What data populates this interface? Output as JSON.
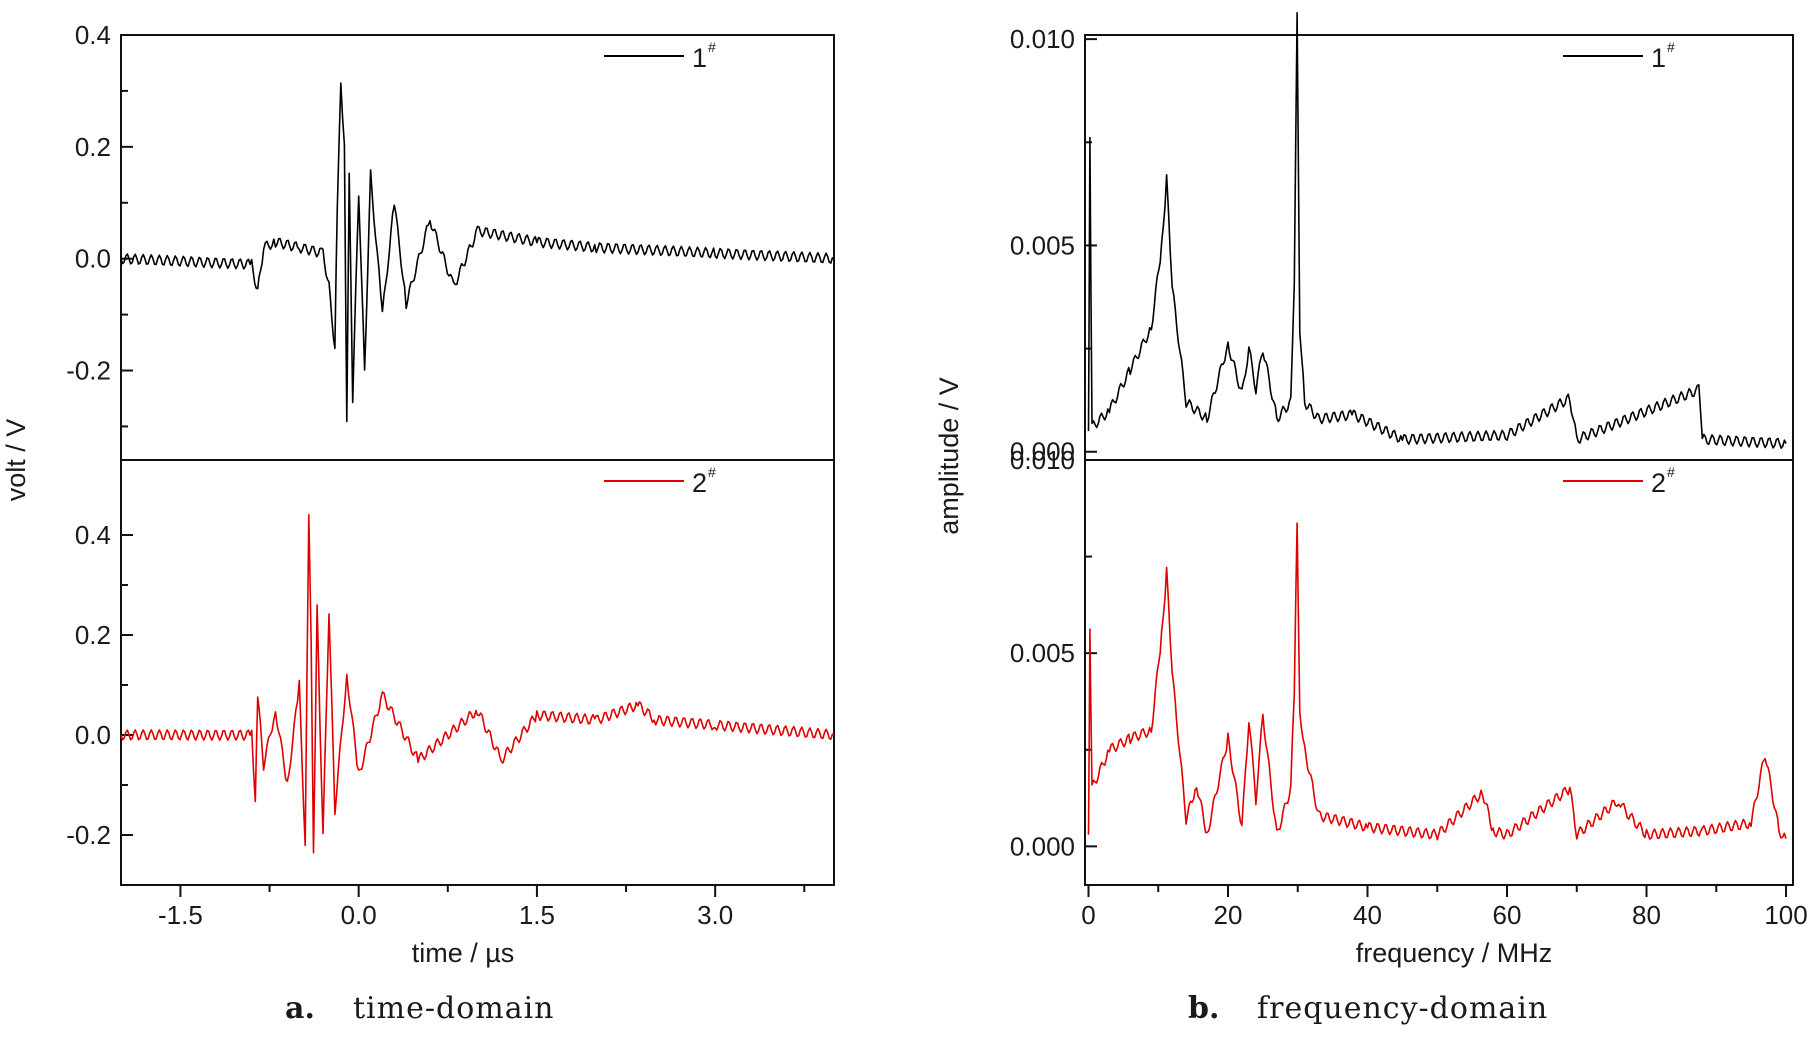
{
  "panels": [
    {
      "caption_letter": "a.",
      "caption_text": "time-domain",
      "xlabel": "time / µs",
      "ylabel": "volt / V"
    },
    {
      "caption_letter": "b.",
      "caption_text": "frequency-domain",
      "xlabel": "frequency / MHz",
      "ylabel": "amplitude / V"
    }
  ],
  "chart_data": [
    {
      "type": "line",
      "panel": "a",
      "xlabel": "time / µs",
      "ylabel": "volt / V",
      "xlim": [
        -2.0,
        4.0
      ],
      "x_ticks": [
        "-1.5",
        "0.0",
        "1.5",
        "3.0"
      ],
      "x_tick_values": [
        -1.5,
        0.0,
        1.5,
        3.0
      ],
      "subplots": [
        {
          "series": [
            {
              "name": "1#",
              "label_main": "1",
              "label_sup": "#",
              "color": "#000000",
              "x": [
                -2.0,
                -0.9,
                -0.85,
                -0.8,
                -0.7,
                -0.5,
                -0.3,
                -0.25,
                -0.2,
                -0.18,
                -0.15,
                -0.12,
                -0.1,
                -0.08,
                -0.05,
                0.0,
                0.05,
                0.1,
                0.2,
                0.3,
                0.4,
                0.6,
                0.8,
                1.0,
                1.5,
                2.0,
                3.0,
                4.0
              ],
              "y": [
                0.0,
                -0.01,
                -0.06,
                0.02,
                0.03,
                0.02,
                0.01,
                -0.05,
                -0.16,
                0.1,
                0.32,
                0.2,
                -0.3,
                0.15,
                -0.25,
                0.12,
                -0.2,
                0.15,
                -0.1,
                0.1,
                -0.08,
                0.07,
                -0.05,
                0.05,
                0.03,
                0.02,
                0.01,
                0.0
              ]
            }
          ],
          "ylim": [
            -0.36,
            0.4
          ],
          "y_ticks": [
            "-0.2",
            "0.0",
            "0.2",
            "0.4"
          ],
          "y_tick_values": [
            -0.2,
            0.0,
            0.2,
            0.4
          ]
        },
        {
          "series": [
            {
              "name": "2#",
              "label_main": "2",
              "label_sup": "#",
              "color": "#e00000",
              "x": [
                -2.0,
                -0.9,
                -0.87,
                -0.85,
                -0.8,
                -0.7,
                -0.6,
                -0.5,
                -0.45,
                -0.42,
                -0.4,
                -0.38,
                -0.35,
                -0.3,
                -0.25,
                -0.2,
                -0.1,
                0.0,
                0.2,
                0.5,
                1.0,
                1.2,
                1.5,
                2.0,
                2.35,
                2.5,
                3.0,
                4.0
              ],
              "y": [
                0.0,
                0.0,
                -0.14,
                0.08,
                -0.06,
                0.05,
                -0.1,
                0.1,
                -0.22,
                0.45,
                0.2,
                -0.24,
                0.25,
                -0.2,
                0.25,
                -0.15,
                0.12,
                -0.08,
                0.08,
                -0.05,
                0.05,
                -0.05,
                0.04,
                0.03,
                0.06,
                0.03,
                0.02,
                0.0
              ]
            }
          ],
          "ylim": [
            -0.3,
            0.55
          ],
          "y_ticks": [
            "-0.2",
            "0.0",
            "0.2",
            "0.4"
          ],
          "y_tick_values": [
            -0.2,
            0.0,
            0.2,
            0.4
          ]
        }
      ]
    },
    {
      "type": "line",
      "panel": "b",
      "xlabel": "frequency / MHz",
      "ylabel": "amplitude / V",
      "xlim": [
        -0.5,
        101
      ],
      "x_ticks": [
        "0",
        "20",
        "40",
        "60",
        "80",
        "100"
      ],
      "x_tick_values": [
        0,
        20,
        40,
        60,
        80,
        100
      ],
      "subplots": [
        {
          "series": [
            {
              "name": "1#",
              "label_main": "1",
              "label_sup": "#",
              "color": "#000000",
              "x": [
                0.0,
                0.2,
                0.5,
                3,
                6,
                9,
                10.5,
                11.2,
                12,
                14,
                17,
                20,
                22,
                23,
                24,
                25,
                27,
                29,
                29.5,
                29.9,
                30.3,
                31,
                33,
                38,
                45,
                60,
                69,
                70,
                87.5,
                88,
                100
              ],
              "y": [
                0.0005,
                0.0075,
                0.0006,
                0.001,
                0.002,
                0.003,
                0.005,
                0.0066,
                0.004,
                0.0012,
                0.0008,
                0.0026,
                0.0014,
                0.0025,
                0.0015,
                0.0025,
                0.0008,
                0.0012,
                0.004,
                0.0107,
                0.003,
                0.0012,
                0.0008,
                0.0009,
                0.0003,
                0.0004,
                0.0013,
                0.0003,
                0.0015,
                0.0003,
                0.0002
              ]
            }
          ],
          "ylim": [
            -0.0002,
            0.0101
          ],
          "y_ticks": [
            "0.000",
            "0.005",
            "0.010"
          ],
          "y_tick_values": [
            0.0,
            0.005,
            0.01
          ]
        },
        {
          "series": [
            {
              "name": "2#",
              "label_main": "2",
              "label_sup": "#",
              "color": "#e00000",
              "x": [
                0.0,
                0.2,
                0.5,
                3,
                6,
                9,
                10.5,
                11.2,
                12,
                14,
                15.5,
                17,
                20,
                22,
                23,
                24,
                25,
                27,
                29,
                29.5,
                29.9,
                30.3,
                31,
                33,
                40,
                50,
                56.5,
                58,
                60,
                69,
                70,
                76,
                77,
                80,
                88,
                95,
                97,
                99,
                100
              ],
              "y": [
                0.0003,
                0.0055,
                0.0015,
                0.0025,
                0.0028,
                0.003,
                0.0055,
                0.0071,
                0.0045,
                0.0007,
                0.0016,
                0.0003,
                0.0028,
                0.0005,
                0.0033,
                0.0012,
                0.0034,
                0.0003,
                0.0015,
                0.004,
                0.0085,
                0.0035,
                0.0025,
                0.0008,
                0.0005,
                0.0003,
                0.0014,
                0.0004,
                0.0003,
                0.0015,
                0.0003,
                0.0012,
                0.0009,
                0.0003,
                0.0004,
                0.0006,
                0.0024,
                0.0004,
                0.0002
              ]
            }
          ],
          "ylim": [
            -0.001,
            0.01
          ],
          "y_ticks": [
            "0.000",
            "0.005",
            "0.010"
          ],
          "y_tick_values": [
            0.0,
            0.005,
            0.01
          ]
        }
      ]
    }
  ]
}
